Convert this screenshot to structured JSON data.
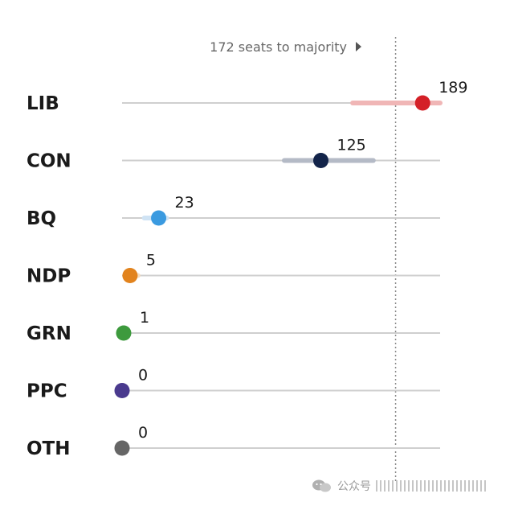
{
  "chart_data": {
    "type": "scatter",
    "majority_label": "172 seats to majority",
    "majority_seats": 172,
    "xlim": [
      0,
      200
    ],
    "parties": [
      {
        "name": "LIB",
        "seats": 189,
        "range": [
          145,
          200
        ],
        "color": "#d42027",
        "range_color": "#f0b6b6"
      },
      {
        "name": "CON",
        "seats": 125,
        "range": [
          102,
          158
        ],
        "color": "#13244a",
        "range_color": "#b4bac6"
      },
      {
        "name": "BQ",
        "seats": 23,
        "range": [
          14,
          28
        ],
        "color": "#3a9ae0",
        "range_color": "#cfe3f4"
      },
      {
        "name": "NDP",
        "seats": 5,
        "range": [
          3,
          10
        ],
        "color": "#e2831d",
        "range_color": "#f6dcbd"
      },
      {
        "name": "GRN",
        "seats": 1,
        "range": [
          0,
          2
        ],
        "color": "#3d9a3d",
        "range_color": "#cde6cd"
      },
      {
        "name": "PPC",
        "seats": 0,
        "range": [
          0,
          1
        ],
        "color": "#4a3a8e",
        "range_color": "#d6d1e8"
      },
      {
        "name": "OTH",
        "seats": 0,
        "range": [
          0,
          1
        ],
        "color": "#666666",
        "range_color": "#dddddd"
      }
    ]
  },
  "watermark": {
    "text": "公众号"
  }
}
